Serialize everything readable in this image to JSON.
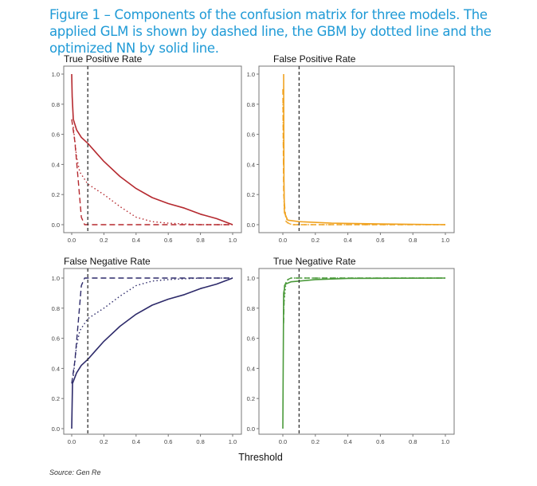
{
  "caption": "Figure 1 – Components of the confusion matrix for three models. The applied GLM is shown by dashed line, the GBM by dotted line and the optimized NN by solid line.",
  "source": "Source: Gen Re",
  "chart_data": {
    "type": "line",
    "xlabel": "Threshold",
    "threshold_marker": 0.1,
    "xlim": [
      0,
      1
    ],
    "ylim": [
      0,
      1
    ],
    "xticks": [
      "0.0",
      "0.2",
      "0.4",
      "0.6",
      "0.8",
      "1.0"
    ],
    "yticks": [
      "0.0",
      "0.2",
      "0.4",
      "0.6",
      "0.8",
      "1.0"
    ],
    "legend_styles": {
      "GLM": "dashed",
      "GBM": "dotted",
      "NN": "solid"
    },
    "panels": [
      {
        "title": "True Positive Rate",
        "color": "#b5292f",
        "series": [
          {
            "name": "NN",
            "style": "solid",
            "points": [
              [
                0,
                1.0
              ],
              [
                0.003,
                0.85
              ],
              [
                0.01,
                0.7
              ],
              [
                0.03,
                0.63
              ],
              [
                0.06,
                0.58
              ],
              [
                0.1,
                0.54
              ],
              [
                0.15,
                0.48
              ],
              [
                0.2,
                0.42
              ],
              [
                0.3,
                0.32
              ],
              [
                0.4,
                0.24
              ],
              [
                0.5,
                0.18
              ],
              [
                0.6,
                0.14
              ],
              [
                0.7,
                0.11
              ],
              [
                0.8,
                0.07
              ],
              [
                0.9,
                0.04
              ],
              [
                1.0,
                0.0
              ]
            ]
          },
          {
            "name": "GLM",
            "style": "dashed",
            "points": [
              [
                0.0,
                0.7
              ],
              [
                0.02,
                0.55
              ],
              [
                0.04,
                0.3
              ],
              [
                0.06,
                0.05
              ],
              [
                0.08,
                0.0
              ],
              [
                1.0,
                0.0
              ]
            ]
          },
          {
            "name": "GBM",
            "style": "dotted",
            "points": [
              [
                0.01,
                0.65
              ],
              [
                0.03,
                0.45
              ],
              [
                0.05,
                0.35
              ],
              [
                0.1,
                0.27
              ],
              [
                0.2,
                0.2
              ],
              [
                0.3,
                0.12
              ],
              [
                0.4,
                0.05
              ],
              [
                0.5,
                0.02
              ],
              [
                0.6,
                0.01
              ],
              [
                0.8,
                0.0
              ],
              [
                1.0,
                0.0
              ]
            ]
          }
        ]
      },
      {
        "title": "False Positive Rate",
        "color": "#f0a322",
        "series": [
          {
            "name": "NN",
            "style": "solid",
            "points": [
              [
                0.005,
                1.0
              ],
              [
                0.007,
                0.3
              ],
              [
                0.01,
                0.08
              ],
              [
                0.03,
                0.03
              ],
              [
                0.1,
                0.02
              ],
              [
                0.3,
                0.01
              ],
              [
                0.6,
                0.005
              ],
              [
                1.0,
                0.0
              ]
            ]
          },
          {
            "name": "GLM",
            "style": "dashed",
            "points": [
              [
                0.0,
                0.9
              ],
              [
                0.005,
                0.2
              ],
              [
                0.02,
                0.02
              ],
              [
                0.05,
                0.0
              ],
              [
                1.0,
                0.0
              ]
            ]
          },
          {
            "name": "GBM",
            "style": "dotted",
            "points": [
              [
                0.0,
                0.8
              ],
              [
                0.008,
                0.1
              ],
              [
                0.03,
                0.01
              ],
              [
                0.06,
                0.0
              ],
              [
                1.0,
                0.0
              ]
            ]
          }
        ]
      },
      {
        "title": "False Negative Rate",
        "color": "#2d2a6a",
        "series": [
          {
            "name": "NN",
            "style": "solid",
            "points": [
              [
                0,
                0.0
              ],
              [
                0.005,
                0.3
              ],
              [
                0.03,
                0.37
              ],
              [
                0.06,
                0.42
              ],
              [
                0.1,
                0.46
              ],
              [
                0.15,
                0.52
              ],
              [
                0.2,
                0.58
              ],
              [
                0.3,
                0.68
              ],
              [
                0.4,
                0.76
              ],
              [
                0.5,
                0.82
              ],
              [
                0.6,
                0.86
              ],
              [
                0.7,
                0.89
              ],
              [
                0.8,
                0.93
              ],
              [
                0.9,
                0.96
              ],
              [
                1.0,
                1.0
              ]
            ]
          },
          {
            "name": "GLM",
            "style": "dashed",
            "points": [
              [
                0.0,
                0.3
              ],
              [
                0.02,
                0.45
              ],
              [
                0.04,
                0.7
              ],
              [
                0.06,
                0.95
              ],
              [
                0.08,
                1.0
              ],
              [
                1.0,
                1.0
              ]
            ]
          },
          {
            "name": "GBM",
            "style": "dotted",
            "points": [
              [
                0.01,
                0.35
              ],
              [
                0.03,
                0.55
              ],
              [
                0.05,
                0.65
              ],
              [
                0.1,
                0.73
              ],
              [
                0.2,
                0.8
              ],
              [
                0.3,
                0.88
              ],
              [
                0.4,
                0.95
              ],
              [
                0.5,
                0.98
              ],
              [
                0.6,
                0.99
              ],
              [
                0.8,
                1.0
              ],
              [
                1.0,
                1.0
              ]
            ]
          }
        ]
      },
      {
        "title": "True Negative Rate",
        "color": "#4b9a3b",
        "series": [
          {
            "name": "NN",
            "style": "solid",
            "points": [
              [
                0,
                0.0
              ],
              [
                0.005,
                0.9
              ],
              [
                0.015,
                0.96
              ],
              [
                0.05,
                0.975
              ],
              [
                0.1,
                0.98
              ],
              [
                0.2,
                0.99
              ],
              [
                0.4,
                0.998
              ],
              [
                1.0,
                1.0
              ]
            ]
          },
          {
            "name": "GLM",
            "style": "dashed",
            "points": [
              [
                0.005,
                0.7
              ],
              [
                0.01,
                0.95
              ],
              [
                0.03,
                0.99
              ],
              [
                0.05,
                1.0
              ],
              [
                1.0,
                1.0
              ]
            ]
          },
          {
            "name": "GBM",
            "style": "dotted",
            "points": [
              [
                0.005,
                0.8
              ],
              [
                0.02,
                0.98
              ],
              [
                0.05,
                1.0
              ],
              [
                1.0,
                1.0
              ]
            ]
          }
        ]
      }
    ]
  }
}
